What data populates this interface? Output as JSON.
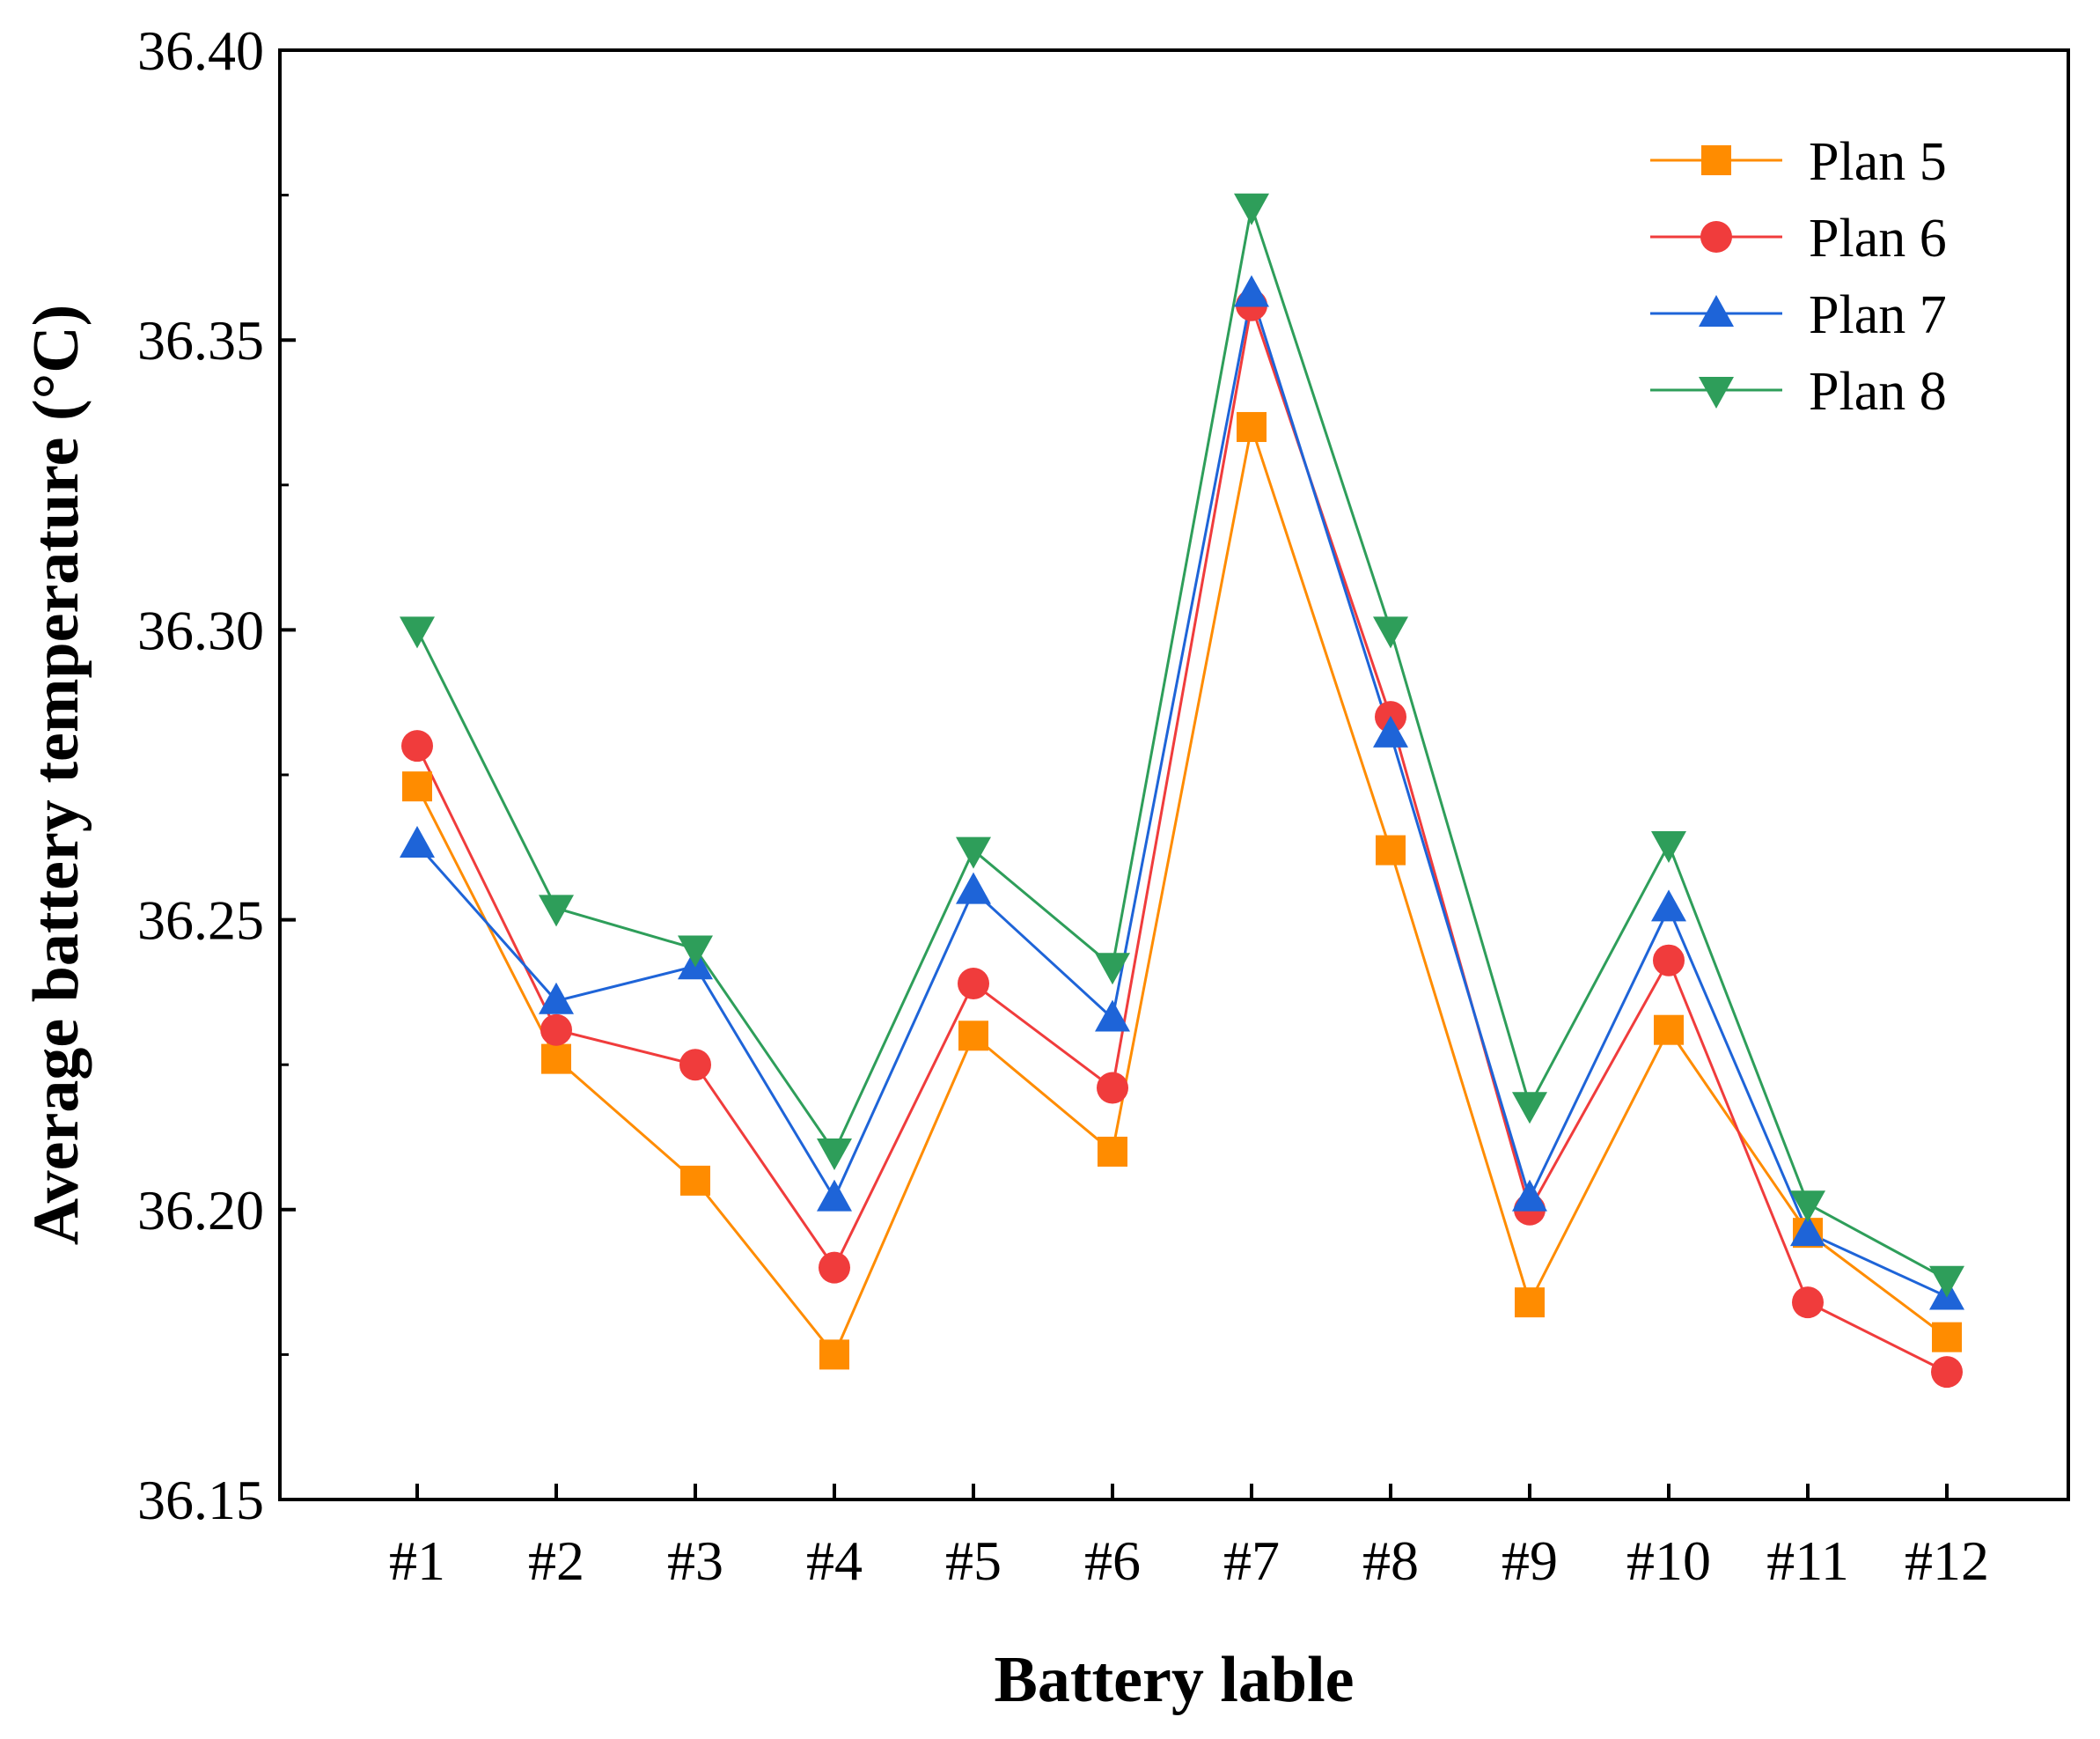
{
  "chart_data": {
    "type": "line",
    "title": "",
    "xlabel": "Battery lable",
    "ylabel": "Average battery temperature (°C)",
    "ylim": [
      36.15,
      36.4
    ],
    "yticks": [
      "36.15",
      "36.20",
      "36.25",
      "36.30",
      "36.35",
      "36.40"
    ],
    "categories": [
      "#1",
      "#2",
      "#3",
      "#4",
      "#5",
      "#6",
      "#7",
      "#8",
      "#9",
      "#10",
      "#11",
      "#12"
    ],
    "legend_position": "top-right",
    "series": [
      {
        "name": "Plan 5",
        "color": "#FF8C00",
        "marker": "square",
        "values": [
          36.273,
          36.226,
          36.205,
          36.175,
          36.23,
          36.21,
          36.335,
          36.262,
          36.184,
          36.231,
          36.196,
          36.178
        ]
      },
      {
        "name": "Plan 6",
        "color": "#F03C3C",
        "marker": "circle",
        "values": [
          36.28,
          36.231,
          36.225,
          36.19,
          36.239,
          36.221,
          36.356,
          36.285,
          36.2,
          36.243,
          36.184,
          36.172
        ]
      },
      {
        "name": "Plan 7",
        "color": "#1E64D8",
        "marker": "triangle-up",
        "values": [
          36.263,
          36.236,
          36.242,
          36.202,
          36.255,
          36.233,
          36.358,
          36.282,
          36.202,
          36.252,
          36.196,
          36.185
        ]
      },
      {
        "name": "Plan 8",
        "color": "#2E9E5A",
        "marker": "triangle-down",
        "values": [
          36.3,
          36.252,
          36.245,
          36.21,
          36.262,
          36.242,
          36.373,
          36.3,
          36.218,
          36.263,
          36.201,
          36.188
        ]
      }
    ]
  }
}
